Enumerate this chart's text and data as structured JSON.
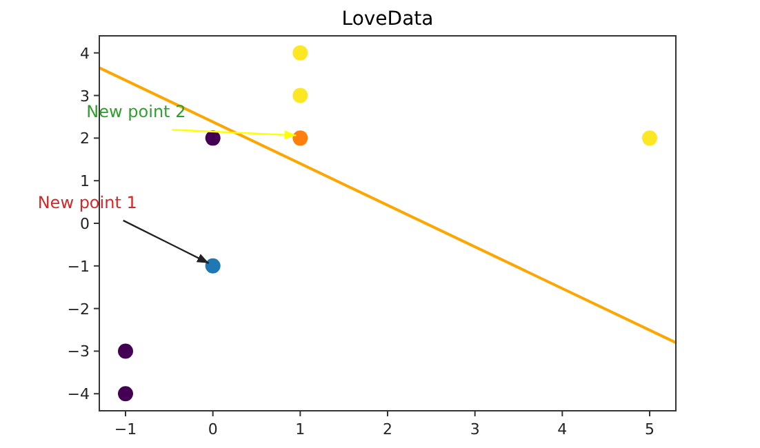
{
  "chart_data": {
    "type": "scatter",
    "title": "LoveData",
    "xlim": [
      -1.3,
      5.3
    ],
    "xticks": [
      {
        "value": -1,
        "label": "−1"
      },
      0,
      1,
      2,
      3,
      4,
      5
    ],
    "ylim": [
      -4.4,
      4.4
    ],
    "yticks": [
      {
        "value": -4,
        "label": "−4"
      },
      {
        "value": -3,
        "label": "−3"
      },
      {
        "value": -2,
        "label": "−2"
      },
      {
        "value": -1,
        "label": "−1"
      },
      0,
      1,
      2,
      3,
      4
    ],
    "grid": false,
    "marker": "circle",
    "series": [
      {
        "type": "line",
        "marker": "none",
        "color": "#ffa500",
        "x": [
          -1.3,
          5.3
        ],
        "values": [
          3.65,
          -2.8
        ]
      },
      {
        "x": [
          0,
          -1,
          -1,
          1,
          1,
          5
        ],
        "values": [
          2,
          -3,
          -4,
          4,
          3,
          2
        ],
        "colors": [
          "#440154",
          "#440154",
          "#440154",
          "#fde725",
          "#fde725",
          "#fde725"
        ]
      },
      {
        "x": [
          0
        ],
        "values": [
          -1
        ],
        "color": "#1f77b4"
      },
      {
        "x": [
          1
        ],
        "values": [
          2
        ],
        "color": "#ff7f0e"
      }
    ],
    "annotations": [
      {
        "text": "New point 1",
        "x": 0,
        "y": -1
      },
      {
        "text": "New point 2",
        "x": 1,
        "y": 2
      }
    ]
  }
}
